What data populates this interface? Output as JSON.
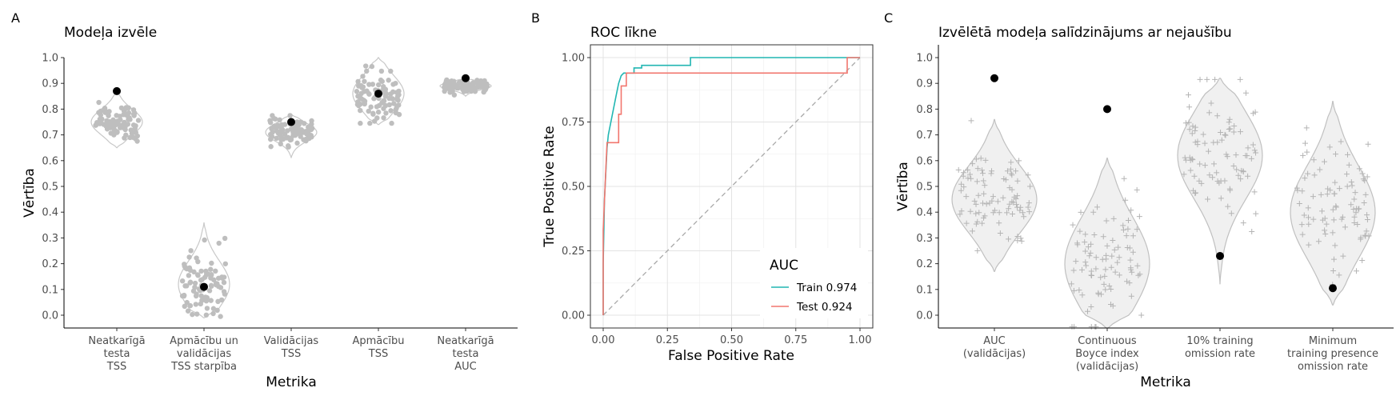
{
  "chart_data": [
    {
      "panel": "A",
      "type": "scatter",
      "title": "Modeļa izvēle",
      "xlabel": "Metrika",
      "ylabel": "Vērtība",
      "ylim": [
        0,
        1
      ],
      "yticks": [
        "0.0",
        "0.1",
        "0.2",
        "0.3",
        "0.4",
        "0.5",
        "0.6",
        "0.7",
        "0.8",
        "0.9",
        "1.0"
      ],
      "categories": [
        [
          "Neatkarīgā",
          "testa",
          "TSS"
        ],
        [
          "Apmācību un",
          "validācijas",
          "TSS starpība"
        ],
        [
          "Validācijas",
          "TSS"
        ],
        [
          "Apmācību",
          "TSS"
        ],
        [
          "Neatkarīgā",
          "testa",
          "AUC"
        ]
      ],
      "distributions": [
        {
          "min": 0.65,
          "max": 0.87,
          "center": 0.75,
          "spread": 0.05
        },
        {
          "min": -0.01,
          "max": 0.36,
          "center": 0.12,
          "spread": 0.09
        },
        {
          "min": 0.61,
          "max": 0.78,
          "center": 0.71,
          "spread": 0.035
        },
        {
          "min": 0.74,
          "max": 1.0,
          "center": 0.86,
          "spread": 0.07
        },
        {
          "min": 0.85,
          "max": 0.92,
          "center": 0.89,
          "spread": 0.015
        }
      ],
      "selected": [
        0.87,
        0.11,
        0.75,
        0.86,
        0.92
      ],
      "colors": {
        "points": "#bebebe",
        "selected": "#000000",
        "violin_stroke": "#c8c8c8"
      }
    },
    {
      "panel": "B",
      "type": "line",
      "title": "ROC līkne",
      "xlabel": "False Positive Rate",
      "ylabel": "True Positive Rate",
      "xlim": [
        0,
        1
      ],
      "ylim": [
        0,
        1
      ],
      "xticks": [
        "0.00",
        "0.25",
        "0.50",
        "0.75",
        "1.00"
      ],
      "yticks": [
        "0.00",
        "0.25",
        "0.50",
        "0.75",
        "1.00"
      ],
      "grid": true,
      "legend": {
        "title": "AUC",
        "position": "bottom-right"
      },
      "series": [
        {
          "name": "Train 0.974",
          "color": "#21b6b2",
          "points": [
            [
              0,
              0
            ],
            [
              0,
              0.2
            ],
            [
              0.005,
              0.45
            ],
            [
              0.01,
              0.55
            ],
            [
              0.015,
              0.65
            ],
            [
              0.02,
              0.7
            ],
            [
              0.03,
              0.75
            ],
            [
              0.04,
              0.8
            ],
            [
              0.05,
              0.85
            ],
            [
              0.06,
              0.9
            ],
            [
              0.07,
              0.93
            ],
            [
              0.08,
              0.94
            ],
            [
              0.12,
              0.94
            ],
            [
              0.12,
              0.96
            ],
            [
              0.15,
              0.96
            ],
            [
              0.15,
              0.97
            ],
            [
              0.34,
              0.97
            ],
            [
              0.34,
              1.0
            ],
            [
              1.0,
              1.0
            ]
          ]
        },
        {
          "name": "Test 0.924",
          "color": "#f2766e",
          "points": [
            [
              0,
              0
            ],
            [
              0,
              0.33
            ],
            [
              0.01,
              0.56
            ],
            [
              0.015,
              0.67
            ],
            [
              0.06,
              0.67
            ],
            [
              0.06,
              0.78
            ],
            [
              0.07,
              0.78
            ],
            [
              0.07,
              0.89
            ],
            [
              0.09,
              0.89
            ],
            [
              0.09,
              0.94
            ],
            [
              0.95,
              0.94
            ],
            [
              0.95,
              1.0
            ],
            [
              1.0,
              1.0
            ]
          ]
        }
      ],
      "reference_line": {
        "from": [
          0,
          0
        ],
        "to": [
          1,
          1
        ],
        "color": "#a9a9a9",
        "dashed": true
      }
    },
    {
      "panel": "C",
      "type": "scatter",
      "title": "Izvēlētā modeļa salīdzinājums ar nejaušību",
      "xlabel": "Metrika",
      "ylabel": "Vērtība",
      "ylim": [
        0,
        1
      ],
      "yticks": [
        "0.0",
        "0.1",
        "0.2",
        "0.3",
        "0.4",
        "0.5",
        "0.6",
        "0.7",
        "0.8",
        "0.9",
        "1.0"
      ],
      "categories": [
        [
          "AUC",
          "(validācijas)"
        ],
        [
          "Continuous",
          "Boyce index",
          "(validācijas)"
        ],
        [
          "10% training",
          "omission rate"
        ],
        [
          "Minimum",
          "training presence",
          "omission rate"
        ]
      ],
      "distributions": [
        {
          "min": 0.17,
          "max": 0.76,
          "center": 0.45,
          "spread": 0.13
        },
        {
          "min": -0.05,
          "max": 0.61,
          "center": 0.2,
          "spread": 0.18
        },
        {
          "min": 0.12,
          "max": 0.92,
          "center": 0.62,
          "spread": 0.17
        },
        {
          "min": 0.04,
          "max": 0.83,
          "center": 0.4,
          "spread": 0.18
        }
      ],
      "selected": [
        0.92,
        0.8,
        0.23,
        0.105
      ],
      "colors": {
        "points": "#bebebe",
        "selected": "#000000",
        "violin_fill": "#f0f0f0",
        "violin_stroke": "#c0c0c0"
      }
    }
  ]
}
